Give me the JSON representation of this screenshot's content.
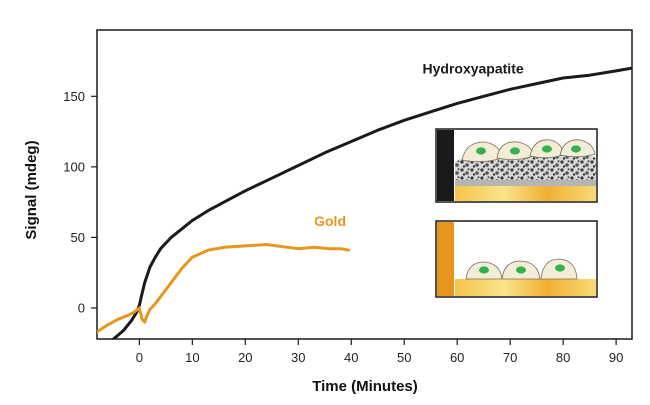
{
  "chart_data": {
    "type": "line",
    "title": "",
    "xlabel": "Time (Minutes)",
    "ylabel": "Signal (mdeg)",
    "xlim": [
      -8,
      93
    ],
    "ylim": [
      -22,
      197
    ],
    "xticks": [
      0,
      10,
      20,
      30,
      40,
      50,
      60,
      70,
      80,
      90
    ],
    "yticks": [
      0,
      50,
      100,
      150
    ],
    "grid": false,
    "legend": "none (series labelled inline)",
    "series": [
      {
        "name": "Hydroxyapatite",
        "color": "#1a1a1a",
        "x": [
          -5.5,
          -3,
          -1.5,
          -0.5,
          0,
          0.5,
          1,
          2,
          3,
          4,
          6,
          8,
          10,
          13,
          16,
          20,
          25,
          30,
          35,
          40,
          45,
          50,
          55,
          60,
          65,
          70,
          75,
          80,
          85,
          90,
          93
        ],
        "y": [
          -24,
          -16,
          -9,
          -3,
          2,
          10,
          18,
          29,
          36,
          42,
          50,
          56,
          62,
          69,
          75,
          83,
          92,
          101,
          110,
          118,
          126,
          133,
          139,
          145,
          150,
          155,
          159,
          163,
          165,
          168,
          170
        ]
      },
      {
        "name": "Gold",
        "color": "#e8951e",
        "x": [
          -8,
          -6,
          -4,
          -2,
          -1,
          0,
          0.5,
          1,
          1.5,
          2,
          3,
          4,
          5,
          6,
          7,
          8,
          10,
          13,
          16,
          20,
          24,
          28,
          30,
          33,
          36,
          38,
          39.5
        ],
        "y": [
          -17,
          -12,
          -8,
          -5,
          -3,
          0,
          -8,
          -10,
          -5,
          -1,
          3,
          8,
          13,
          18,
          23,
          28,
          36,
          41,
          43,
          44,
          45,
          43,
          42,
          43,
          42,
          42,
          41
        ]
      }
    ],
    "annotations": [
      "Hydroxyapatite",
      "Gold"
    ]
  }
}
